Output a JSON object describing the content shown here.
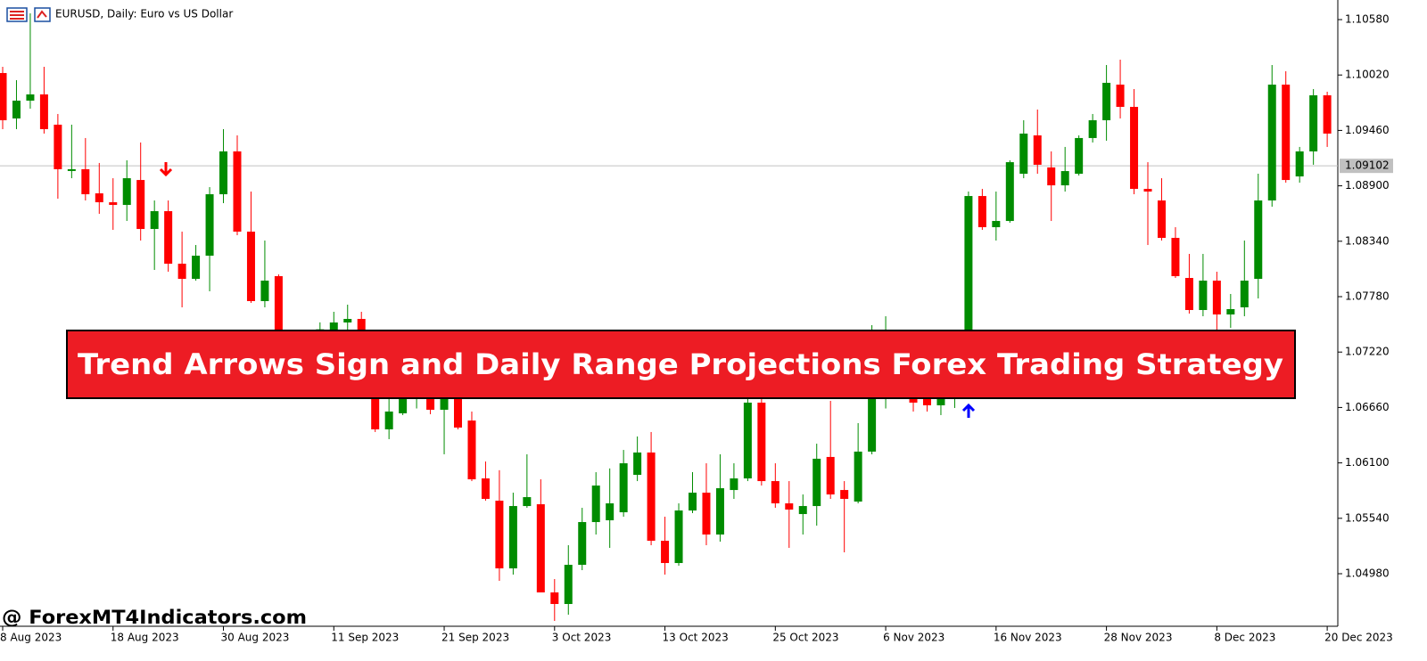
{
  "chart_data": {
    "type": "candlestick",
    "title": "EURUSD, Daily:  Euro vs US Dollar",
    "annotation": "Trend Arrows Sign and Daily Range Projections Forex Trading Strategy",
    "watermark": "@ ForexMT4Indicators.com",
    "categories": [
      "8 Aug 2023",
      null,
      null,
      null,
      null,
      null,
      null,
      null,
      "18 Aug 2023",
      null,
      null,
      null,
      null,
      null,
      null,
      null,
      "30 Aug 2023",
      null,
      null,
      null,
      null,
      null,
      null,
      null,
      "11 Sep 2023",
      null,
      null,
      null,
      null,
      null,
      null,
      null,
      "21 Sep 2023",
      null,
      null,
      null,
      null,
      null,
      null,
      null,
      "3 Oct 2023",
      null,
      null,
      null,
      null,
      null,
      null,
      null,
      "13 Oct 2023",
      null,
      null,
      null,
      null,
      null,
      null,
      null,
      "25 Oct 2023",
      null,
      null,
      null,
      null,
      null,
      null,
      null,
      "6 Nov 2023",
      null,
      null,
      null,
      null,
      null,
      null,
      null,
      "16 Nov 2023",
      null,
      null,
      null,
      null,
      null,
      null,
      null,
      "28 Nov 2023",
      null,
      null,
      null,
      null,
      null,
      null,
      null,
      "8 Dec 2023",
      null,
      null,
      null,
      null,
      null,
      null,
      null,
      "20 Dec 2023"
    ],
    "series": [
      {
        "open": [
          1.1004,
          1.09581,
          1.09761,
          1.09824,
          1.09518,
          1.0905,
          1.09068,
          1.08824,
          1.08734,
          1.08707,
          1.08959,
          1.08464,
          1.08644,
          1.08113,
          1.0796,
          1.08194,
          1.08815,
          1.09248,
          1.08437,
          1.07735,
          1.07987,
          1.07222,
          1.0715,
          1.0728,
          1.07447,
          1.07519,
          1.07555,
          1.073,
          1.06439,
          1.06601,
          1.06745,
          1.0695,
          1.06637,
          1.068,
          1.06528,
          1.05943,
          1.05718,
          1.05034,
          1.05664,
          1.05682,
          1.04791,
          1.04674,
          1.0507,
          1.05502,
          1.0552,
          1.05601,
          1.05979,
          1.06205,
          1.05313,
          1.05088,
          1.05619,
          1.05799,
          1.05376,
          1.05826,
          1.05943,
          1.06709,
          1.05916,
          1.05691,
          1.05583,
          1.05664,
          1.0616,
          1.05826,
          1.05709,
          1.06214,
          1.06745,
          1.0705,
          1.0685,
          1.0678,
          1.06682,
          1.0676,
          1.06907,
          1.08797,
          1.08482,
          1.08545,
          1.09022,
          1.0941,
          1.09086,
          1.08905,
          1.09022,
          1.09383,
          1.09563,
          1.09923,
          1.09698,
          1.08869,
          1.08752,
          1.08374,
          1.07969,
          1.07645,
          1.07942,
          1.076,
          1.07672,
          1.0796,
          1.08752,
          1.09923,
          1.08995,
          1.09248,
          1.09815
        ],
        "high": [
          1.10103,
          1.09968,
          1.10643,
          1.10103,
          1.09626,
          1.09518,
          1.09383,
          1.09131,
          1.08977,
          1.09158,
          1.09338,
          1.08752,
          1.08752,
          1.08437,
          1.08302,
          1.08887,
          1.09473,
          1.0941,
          1.08842,
          1.08347,
          1.08005,
          1.073,
          1.0735,
          1.0752,
          1.07627,
          1.07699,
          1.07627,
          1.0735,
          1.0675,
          1.069,
          1.071,
          1.0705,
          1.069,
          1.069,
          1.06619,
          1.06114,
          1.06026,
          1.05799,
          1.06187,
          1.05934,
          1.04926,
          1.05268,
          1.05646,
          1.06006,
          1.06044,
          1.06231,
          1.06367,
          1.06412,
          1.05556,
          1.05691,
          1.06006,
          1.06096,
          1.06187,
          1.06096,
          1.068,
          1.068,
          1.06096,
          1.05916,
          1.05781,
          1.06294,
          1.06727,
          1.05916,
          1.06502,
          1.07492,
          1.07582,
          1.0715,
          1.0695,
          1.0685,
          1.0685,
          1.0695,
          1.08842,
          1.08869,
          1.08842,
          1.09158,
          1.09563,
          1.09671,
          1.09248,
          1.09293,
          1.0941,
          1.09626,
          1.10121,
          1.10175,
          1.09878,
          1.09139,
          1.08977,
          1.08482,
          1.08212,
          1.08212,
          1.08032,
          1.07807,
          1.08347,
          1.09022,
          1.10121,
          1.10058,
          1.09293,
          1.09878,
          1.09851
        ],
        "low": [
          1.09473,
          1.09473,
          1.0968,
          1.09428,
          1.0877,
          1.08977,
          1.08752,
          1.08617,
          1.08455,
          1.08545,
          1.08347,
          1.0805,
          1.08032,
          1.07672,
          1.07942,
          1.07834,
          1.08725,
          1.08401,
          1.07717,
          1.07672,
          1.07177,
          1.0705,
          1.0708,
          1.072,
          1.0735,
          1.074,
          1.072,
          1.06412,
          1.0634,
          1.06583,
          1.0665,
          1.06592,
          1.06187,
          1.06439,
          1.05916,
          1.05718,
          1.04908,
          1.04971,
          1.05646,
          1.04791,
          1.04503,
          1.04566,
          1.05016,
          1.05376,
          1.05241,
          1.05556,
          1.05916,
          1.05268,
          1.04971,
          1.05061,
          1.05592,
          1.05268,
          1.05304,
          1.05736,
          1.05916,
          1.05871,
          1.05646,
          1.05241,
          1.05376,
          1.05466,
          1.05736,
          1.05196,
          1.05691,
          1.06187,
          1.0665,
          1.0675,
          1.06619,
          1.06619,
          1.06583,
          1.06655,
          1.0685,
          1.08455,
          1.08347,
          1.08527,
          1.08977,
          1.09022,
          1.08545,
          1.08842,
          1.09004,
          1.09338,
          1.09356,
          1.09581,
          1.08815,
          1.08302,
          1.08347,
          1.07969,
          1.07609,
          1.07582,
          1.07447,
          1.07465,
          1.07582,
          1.07762,
          1.08689,
          1.08932,
          1.08932,
          1.09113,
          1.09293
        ],
        "close": [
          1.09563,
          1.09761,
          1.09824,
          1.09473,
          1.09068,
          1.09068,
          1.08815,
          1.08734,
          1.08707,
          1.08977,
          1.08464,
          1.08644,
          1.08113,
          1.0796,
          1.08194,
          1.08815,
          1.09248,
          1.08437,
          1.07735,
          1.07942,
          1.07222,
          1.0715,
          1.0728,
          1.0745,
          1.07519,
          1.07555,
          1.073,
          1.06439,
          1.06619,
          1.06745,
          1.0695,
          1.06637,
          1.068,
          1.06457,
          1.05934,
          1.05736,
          1.05034,
          1.05664,
          1.05754,
          1.04791,
          1.04674,
          1.0507,
          1.05502,
          1.05871,
          1.05691,
          1.06096,
          1.06205,
          1.05313,
          1.05088,
          1.05619,
          1.05799,
          1.05376,
          1.05844,
          1.05943,
          1.06709,
          1.05916,
          1.05691,
          1.05628,
          1.05664,
          1.06142,
          1.05781,
          1.05736,
          1.06214,
          1.06745,
          1.0705,
          1.0685,
          1.06709,
          1.06682,
          1.0676,
          1.0685,
          1.08797,
          1.08482,
          1.08545,
          1.09139,
          1.09428,
          1.09113,
          1.08905,
          1.09049,
          1.09383,
          1.09563,
          1.09941,
          1.09698,
          1.08869,
          1.08842,
          1.08374,
          1.07987,
          1.07645,
          1.07942,
          1.076,
          1.07654,
          1.07942,
          1.08752,
          1.09923,
          1.08959,
          1.09248,
          1.09815,
          1.09428
        ]
      }
    ],
    "up_color": "#008c00",
    "down_color": "#ff0000",
    "current_price": 1.09102,
    "ylim": [
      1.04449,
      1.10778
    ],
    "yticks": [
      {
        "value": 1.1058,
        "label": "1.10580"
      },
      {
        "value": 1.1002,
        "label": "1.10020"
      },
      {
        "value": 1.0946,
        "label": "1.09460"
      },
      {
        "value": 1.089,
        "label": "1.08900"
      },
      {
        "value": 1.0834,
        "label": "1.08340"
      },
      {
        "value": 1.0778,
        "label": "1.07780"
      },
      {
        "value": 1.0722,
        "label": "1.07220"
      },
      {
        "value": 1.0666,
        "label": "1.06660"
      },
      {
        "value": 1.061,
        "label": "1.06100"
      },
      {
        "value": 1.0554,
        "label": "1.05540"
      },
      {
        "value": 1.0498,
        "label": "1.04980"
      }
    ],
    "grid": false
  }
}
